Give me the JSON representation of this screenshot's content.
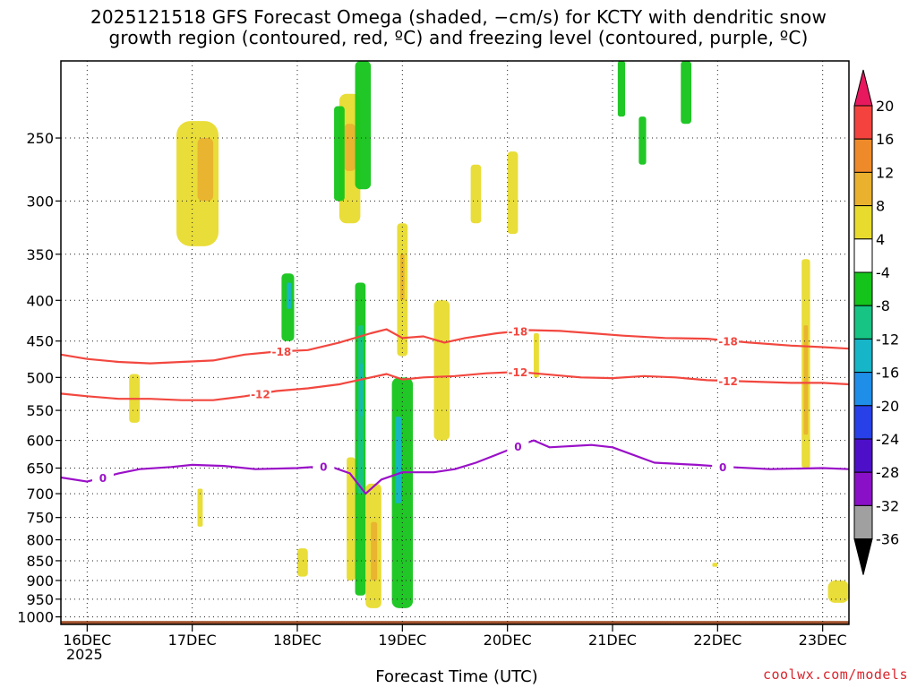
{
  "title": {
    "line1": "2025121518 GFS Forecast Omega (shaded, −cm/s) for KCTY with dendritic snow",
    "line2": "growth region (contoured, red, ºC) and freezing level (contoured, purple, ºC)"
  },
  "credit": "coolwx.com/models",
  "colors": {
    "red_contour": "#f2473f",
    "purple_contour": "#9a10c8",
    "terrain": "#a0522d",
    "grid": "#222222"
  },
  "chart_data": {
    "type": "heatmap",
    "title": "2025121518 GFS Forecast Omega (shaded, −cm/s) for KCTY with dendritic snow growth region (contoured, red, ºC) and freezing level (contoured, purple, ºC)",
    "xlabel": "Forecast Time (UTC)",
    "ylabel": "",
    "x_ticks": [
      "16DEC",
      "17DEC",
      "18DEC",
      "19DEC",
      "20DEC",
      "21DEC",
      "22DEC",
      "23DEC"
    ],
    "x_year_label": "2025",
    "x_range_days": [
      15.75,
      23.25
    ],
    "y_ticks_hpa": [
      250,
      300,
      350,
      400,
      450,
      500,
      550,
      600,
      650,
      700,
      750,
      800,
      850,
      900,
      950,
      1000
    ],
    "y_range_hpa": [
      200,
      1022
    ],
    "y_scale": "log",
    "grid": true,
    "colorbar": {
      "labels": [
        20,
        16,
        12,
        8,
        4,
        -4,
        -8,
        -12,
        -16,
        -20,
        -24,
        -28,
        -32,
        -36
      ],
      "colors": [
        "#e8185f",
        "#f4433e",
        "#ef8a2a",
        "#e9b12e",
        "#e8db2e",
        "#ffffff",
        "#14c41a",
        "#17c484",
        "#16b5c8",
        "#1f8ee8",
        "#2740e8",
        "#4d10c8",
        "#8a10c8",
        "#a0a0a0",
        "#000000"
      ]
    },
    "series": [
      {
        "name": "-18",
        "color": "#f2473f",
        "label_days": [
          17.85,
          20.1,
          22.1
        ],
        "points": [
          [
            15.75,
            468
          ],
          [
            16.0,
            474
          ],
          [
            16.3,
            478
          ],
          [
            16.6,
            480
          ],
          [
            16.9,
            478
          ],
          [
            17.2,
            476
          ],
          [
            17.5,
            468
          ],
          [
            17.8,
            464
          ],
          [
            18.1,
            462
          ],
          [
            18.4,
            452
          ],
          [
            18.7,
            440
          ],
          [
            18.85,
            435
          ],
          [
            19.0,
            446
          ],
          [
            19.2,
            444
          ],
          [
            19.4,
            452
          ],
          [
            19.6,
            446
          ],
          [
            19.9,
            440
          ],
          [
            20.2,
            436
          ],
          [
            20.5,
            437
          ],
          [
            20.8,
            440
          ],
          [
            21.1,
            443
          ],
          [
            21.5,
            446
          ],
          [
            21.9,
            447
          ],
          [
            22.3,
            452
          ],
          [
            22.7,
            456
          ],
          [
            23.0,
            458
          ],
          [
            23.25,
            460
          ]
        ]
      },
      {
        "name": "-12",
        "color": "#f2473f",
        "label_days": [
          17.65,
          20.1,
          22.1
        ],
        "points": [
          [
            15.75,
            524
          ],
          [
            16.0,
            528
          ],
          [
            16.3,
            532
          ],
          [
            16.6,
            532
          ],
          [
            16.9,
            534
          ],
          [
            17.2,
            534
          ],
          [
            17.5,
            528
          ],
          [
            17.8,
            520
          ],
          [
            18.1,
            516
          ],
          [
            18.4,
            510
          ],
          [
            18.7,
            500
          ],
          [
            18.85,
            495
          ],
          [
            19.0,
            503
          ],
          [
            19.2,
            500
          ],
          [
            19.5,
            498
          ],
          [
            19.8,
            494
          ],
          [
            20.1,
            492
          ],
          [
            20.4,
            496
          ],
          [
            20.7,
            500
          ],
          [
            21.0,
            501
          ],
          [
            21.3,
            498
          ],
          [
            21.6,
            500
          ],
          [
            21.9,
            504
          ],
          [
            22.3,
            506
          ],
          [
            22.7,
            508
          ],
          [
            23.0,
            508
          ],
          [
            23.25,
            510
          ]
        ]
      },
      {
        "name": "0",
        "color": "#9a10c8",
        "label_days": [
          16.15,
          18.25,
          20.1,
          22.05
        ],
        "points": [
          [
            15.75,
            668
          ],
          [
            16.0,
            676
          ],
          [
            16.3,
            660
          ],
          [
            16.5,
            652
          ],
          [
            16.8,
            648
          ],
          [
            17.0,
            644
          ],
          [
            17.3,
            646
          ],
          [
            17.6,
            652
          ],
          [
            18.0,
            650
          ],
          [
            18.3,
            646
          ],
          [
            18.5,
            660
          ],
          [
            18.65,
            700
          ],
          [
            18.8,
            672
          ],
          [
            19.0,
            658
          ],
          [
            19.3,
            658
          ],
          [
            19.5,
            652
          ],
          [
            19.7,
            640
          ],
          [
            19.9,
            625
          ],
          [
            20.1,
            610
          ],
          [
            20.25,
            600
          ],
          [
            20.4,
            612
          ],
          [
            20.8,
            608
          ],
          [
            21.0,
            612
          ],
          [
            21.4,
            640
          ],
          [
            21.8,
            644
          ],
          [
            22.1,
            648
          ],
          [
            22.5,
            652
          ],
          [
            23.0,
            650
          ],
          [
            23.25,
            652
          ]
        ]
      }
    ],
    "omega_blobs": [
      {
        "x": [
          16.85,
          17.25
        ],
        "p": [
          238,
          342
        ],
        "value": 5
      },
      {
        "x": [
          17.05,
          17.2
        ],
        "p": [
          250,
          300
        ],
        "value": 9
      },
      {
        "x": [
          16.4,
          16.5
        ],
        "p": [
          495,
          570
        ],
        "value": 5
      },
      {
        "x": [
          17.05,
          17.1
        ],
        "p": [
          690,
          770
        ],
        "value": 5
      },
      {
        "x": [
          18.4,
          18.6
        ],
        "p": [
          220,
          320
        ],
        "value": 5
      },
      {
        "x": [
          18.45,
          18.55
        ],
        "p": [
          240,
          275
        ],
        "value": 12
      },
      {
        "x": [
          18.35,
          18.45
        ],
        "p": [
          228,
          300
        ],
        "value": -6
      },
      {
        "x": [
          18.55,
          18.7
        ],
        "p": [
          200,
          290
        ],
        "value": -6
      },
      {
        "x": [
          18.55,
          18.65
        ],
        "p": [
          380,
          940
        ],
        "value": -6
      },
      {
        "x": [
          18.58,
          18.63
        ],
        "p": [
          430,
          700
        ],
        "value": -11
      },
      {
        "x": [
          18.6,
          18.62
        ],
        "p": [
          480,
          560
        ],
        "value": -15
      },
      {
        "x": [
          18.47,
          18.55
        ],
        "p": [
          630,
          900
        ],
        "value": 6
      },
      {
        "x": [
          18.65,
          18.8
        ],
        "p": [
          680,
          975
        ],
        "value": 6
      },
      {
        "x": [
          18.7,
          18.76
        ],
        "p": [
          760,
          900
        ],
        "value": 12
      },
      {
        "x": [
          18.9,
          19.1
        ],
        "p": [
          500,
          975
        ],
        "value": -6
      },
      {
        "x": [
          18.93,
          18.99
        ],
        "p": [
          560,
          720
        ],
        "value": -12
      },
      {
        "x": [
          18.95,
          19.05
        ],
        "p": [
          320,
          470
        ],
        "value": 6
      },
      {
        "x": [
          18.98,
          19.02
        ],
        "p": [
          350,
          400
        ],
        "value": 10
      },
      {
        "x": [
          17.85,
          17.97
        ],
        "p": [
          370,
          450
        ],
        "value": -6
      },
      {
        "x": [
          17.9,
          17.94
        ],
        "p": [
          380,
          410
        ],
        "value": -12
      },
      {
        "x": [
          19.3,
          19.45
        ],
        "p": [
          400,
          600
        ],
        "value": 5
      },
      {
        "x": [
          19.65,
          19.75
        ],
        "p": [
          270,
          320
        ],
        "value": 5
      },
      {
        "x": [
          20.0,
          20.1
        ],
        "p": [
          260,
          330
        ],
        "value": 5
      },
      {
        "x": [
          20.25,
          20.3
        ],
        "p": [
          440,
          500
        ],
        "value": 5
      },
      {
        "x": [
          22.8,
          22.88
        ],
        "p": [
          355,
          650
        ],
        "value": 5
      },
      {
        "x": [
          22.82,
          22.86
        ],
        "p": [
          430,
          590
        ],
        "value": 9
      },
      {
        "x": [
          23.05,
          23.25
        ],
        "p": [
          900,
          960
        ],
        "value": 5
      },
      {
        "x": [
          21.05,
          21.12
        ],
        "p": [
          200,
          235
        ],
        "value": -6
      },
      {
        "x": [
          21.65,
          21.75
        ],
        "p": [
          200,
          240
        ],
        "value": -6
      },
      {
        "x": [
          21.25,
          21.32
        ],
        "p": [
          235,
          270
        ],
        "value": -6
      },
      {
        "x": [
          18.0,
          18.1
        ],
        "p": [
          820,
          890
        ],
        "value": 5
      },
      {
        "x": [
          21.95,
          22.0
        ],
        "p": [
          855,
          865
        ],
        "value": 5
      }
    ],
    "terrain_hpa": 1012
  }
}
